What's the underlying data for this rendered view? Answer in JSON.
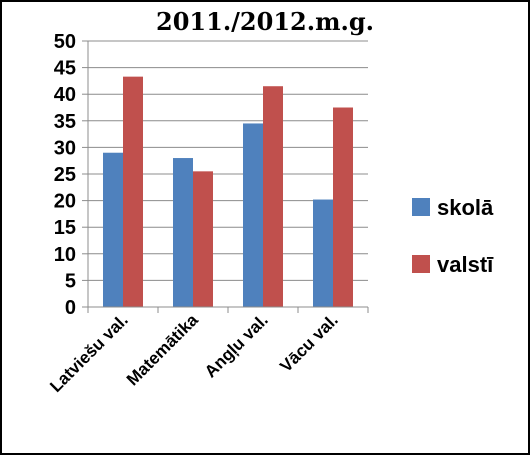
{
  "chart_data": {
    "type": "bar",
    "title": "2011./2012.m.g.",
    "categories": [
      "Latviešu val.",
      "Matemātika",
      "Angļu val.",
      "Vācu val."
    ],
    "series": [
      {
        "name": "skolā",
        "color": "#4f81bd",
        "values": [
          29,
          28,
          34.5,
          20.2
        ]
      },
      {
        "name": "valstī",
        "color": "#c0504d",
        "values": [
          43.3,
          25.5,
          41.5,
          37.5
        ]
      }
    ],
    "yticks": [
      0,
      5,
      10,
      15,
      20,
      25,
      30,
      35,
      40,
      45,
      50
    ],
    "ylim": [
      0,
      50
    ],
    "grid": true,
    "legend_position": "right"
  }
}
